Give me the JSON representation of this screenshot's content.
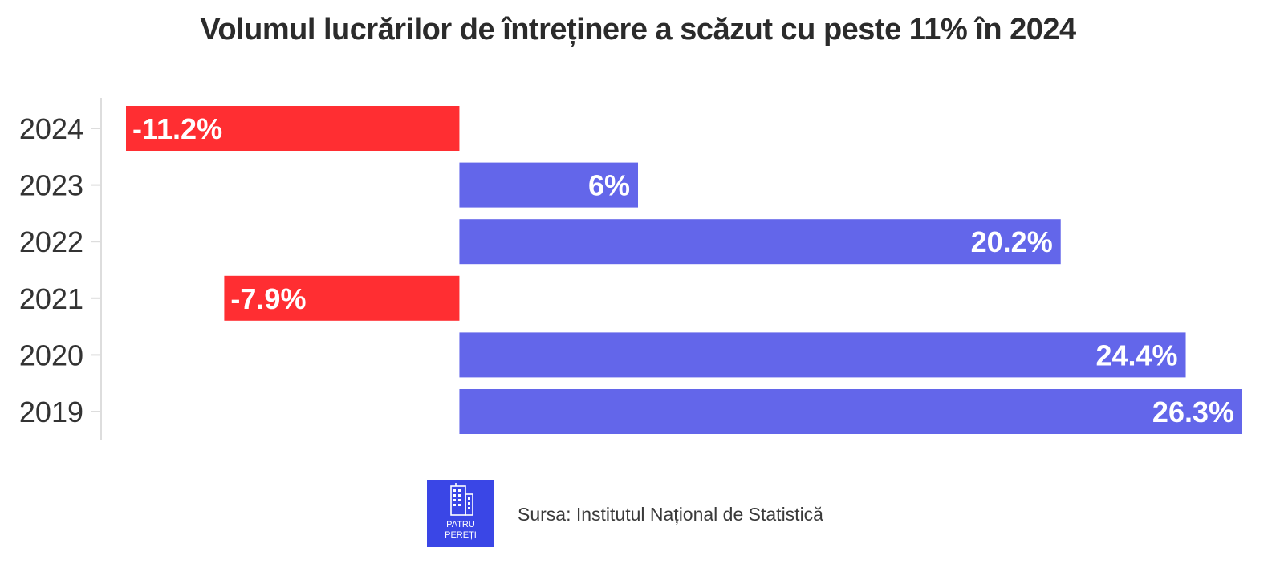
{
  "title": "Volumul lucrărilor de întreținere a scăzut cu peste 11% în 2024",
  "colors": {
    "negative": "#ff2e32",
    "positive": "#6366ea",
    "axis": "#dddddd",
    "label": "#333333"
  },
  "chart_data": {
    "type": "bar",
    "orientation": "horizontal",
    "categories": [
      "2024",
      "2023",
      "2022",
      "2021",
      "2020",
      "2019"
    ],
    "values": [
      -11.2,
      6,
      20.2,
      -7.9,
      24.4,
      26.3
    ],
    "data_labels": [
      "-11.2%",
      "6%",
      "20.2%",
      "-7.9%",
      "24.4%",
      "26.3%"
    ],
    "unit": "%",
    "xlim": [
      -11.2,
      26.3
    ],
    "grid": false,
    "legend": "none"
  },
  "footer": {
    "logo_line1": "PATRU",
    "logo_line2": "PEREȚI",
    "logo_icon": "building-icon",
    "source": "Sursa: Institutul Național de Statistică"
  }
}
